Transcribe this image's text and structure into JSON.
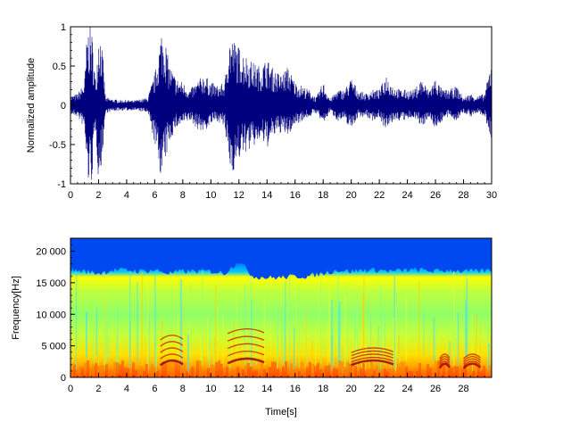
{
  "chart_data": [
    {
      "type": "line",
      "xlabel": "",
      "ylabel": "Normalized amplitude",
      "xlim": [
        0,
        30
      ],
      "ylim": [
        -1,
        1
      ],
      "xticks": [
        0,
        2,
        4,
        6,
        8,
        10,
        12,
        14,
        16,
        18,
        20,
        22,
        24,
        26,
        28,
        30
      ],
      "xtick_labels": [
        "0",
        "2",
        "4",
        "6",
        "8",
        "10",
        "12",
        "14",
        "16",
        "18",
        "20",
        "22",
        "24",
        "26",
        "28",
        "30"
      ],
      "yticks": [
        1,
        0.5,
        0,
        -0.5,
        -1
      ],
      "ytick_labels": [
        "1",
        "0.5",
        "0",
        "-0.5",
        "-1"
      ],
      "line_color": "#00007f",
      "grid": false,
      "envelope": {
        "x": [
          0.0,
          0.5,
          1.0,
          1.2,
          1.5,
          1.8,
          2.0,
          2.2,
          2.5,
          3.0,
          3.5,
          4.0,
          4.5,
          5.0,
          5.5,
          6.0,
          6.2,
          6.5,
          6.8,
          7.0,
          7.5,
          8.0,
          8.5,
          9.0,
          9.5,
          10.0,
          10.5,
          11.0,
          11.3,
          11.6,
          12.0,
          12.5,
          13.0,
          13.5,
          14.0,
          14.5,
          15.0,
          15.5,
          16.0,
          16.5,
          17.0,
          17.5,
          18.0,
          18.5,
          19.0,
          19.5,
          20.0,
          20.5,
          21.0,
          21.5,
          22.0,
          22.5,
          23.0,
          23.5,
          24.0,
          24.5,
          25.0,
          25.5,
          26.0,
          26.5,
          27.0,
          27.5,
          28.0,
          28.5,
          29.0,
          29.5,
          30.0
        ],
        "upper": [
          0.12,
          0.15,
          0.3,
          1.0,
          1.0,
          0.3,
          1.0,
          0.9,
          0.1,
          0.08,
          0.07,
          0.07,
          0.06,
          0.08,
          0.1,
          0.4,
          0.6,
          1.0,
          0.8,
          0.55,
          0.35,
          0.3,
          0.2,
          0.3,
          0.4,
          0.3,
          0.25,
          0.3,
          0.9,
          0.85,
          0.75,
          0.65,
          0.55,
          0.5,
          0.6,
          0.45,
          0.4,
          0.5,
          0.3,
          0.25,
          0.2,
          0.1,
          0.3,
          0.08,
          0.2,
          0.2,
          0.35,
          0.2,
          0.15,
          0.2,
          0.2,
          0.4,
          0.25,
          0.2,
          0.2,
          0.2,
          0.35,
          0.2,
          0.35,
          0.2,
          0.2,
          0.25,
          0.1,
          0.15,
          0.12,
          0.15,
          0.6
        ],
        "lower": [
          -0.12,
          -0.15,
          -0.3,
          -1.0,
          -1.0,
          -0.3,
          -1.0,
          -0.8,
          -0.1,
          -0.08,
          -0.07,
          -0.07,
          -0.06,
          -0.08,
          -0.1,
          -0.5,
          -0.7,
          -0.95,
          -0.7,
          -0.5,
          -0.3,
          -0.25,
          -0.2,
          -0.3,
          -0.35,
          -0.25,
          -0.2,
          -0.3,
          -0.8,
          -0.85,
          -0.7,
          -0.6,
          -0.55,
          -0.45,
          -0.55,
          -0.4,
          -0.35,
          -0.4,
          -0.25,
          -0.2,
          -0.15,
          -0.1,
          -0.25,
          -0.08,
          -0.2,
          -0.2,
          -0.3,
          -0.15,
          -0.15,
          -0.2,
          -0.15,
          -0.35,
          -0.2,
          -0.2,
          -0.2,
          -0.15,
          -0.3,
          -0.15,
          -0.3,
          -0.2,
          -0.15,
          -0.2,
          -0.1,
          -0.15,
          -0.1,
          -0.15,
          -0.45
        ]
      }
    },
    {
      "type": "heatmap",
      "xlabel": "Time[s]",
      "ylabel": "Frequency[Hz]",
      "xlim": [
        0,
        30
      ],
      "ylim": [
        0,
        22050
      ],
      "xticks": [
        0,
        2,
        4,
        6,
        8,
        10,
        12,
        14,
        16,
        18,
        20,
        22,
        24,
        26,
        28
      ],
      "xtick_labels": [
        "0",
        "2",
        "4",
        "6",
        "8",
        "10",
        "12",
        "14",
        "16",
        "18",
        "20",
        "22",
        "24",
        "26",
        "28"
      ],
      "yticks": [
        0,
        5000,
        10000,
        15000,
        20000
      ],
      "ytick_labels": [
        "0",
        "5 000",
        "10 000",
        "15 000",
        "20 000"
      ],
      "colormap": "jet",
      "colormap_colors": [
        "#00008f",
        "#0040ff",
        "#00c0ff",
        "#40ffbf",
        "#bfff40",
        "#ffc000",
        "#ff4000",
        "#8f0000"
      ],
      "high_band_cutoff_hz": {
        "x": [
          0,
          1,
          2,
          3,
          4,
          5,
          6,
          7,
          8,
          9,
          10,
          11,
          12,
          13,
          14,
          15,
          16,
          17,
          18,
          19,
          20,
          21,
          22,
          23,
          24,
          25,
          26,
          27,
          28,
          29,
          30
        ],
        "y": [
          17000,
          16800,
          16500,
          17000,
          17000,
          16800,
          17000,
          16500,
          16800,
          16800,
          16800,
          16500,
          18500,
          16000,
          15800,
          15800,
          16000,
          16000,
          16500,
          17000,
          16800,
          17000,
          17000,
          16800,
          17000,
          17000,
          16800,
          17000,
          16800,
          16800,
          17000
        ]
      },
      "harmonic_bursts": [
        {
          "x": [
            6.4,
            8.0
          ],
          "hz": [
            2500,
            6500
          ]
        },
        {
          "x": [
            11.2,
            13.8
          ],
          "hz": [
            2800,
            7500
          ]
        },
        {
          "x": [
            20.0,
            23.0
          ],
          "hz": [
            2500,
            4500
          ]
        },
        {
          "x": [
            26.3,
            27.0
          ],
          "hz": [
            2000,
            3500
          ]
        },
        {
          "x": [
            28.0,
            29.2
          ],
          "hz": [
            2000,
            3500
          ]
        }
      ]
    }
  ]
}
